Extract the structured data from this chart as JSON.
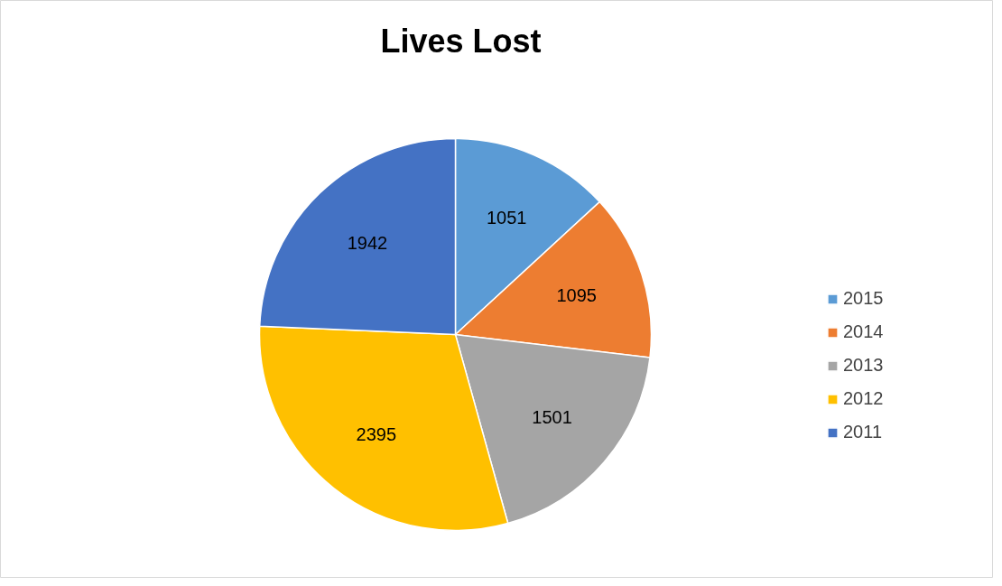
{
  "chart_data": {
    "type": "pie",
    "title": "Lives Lost",
    "categories": [
      "2015",
      "2014",
      "2013",
      "2012",
      "2011"
    ],
    "values": [
      1051,
      1095,
      1501,
      2395,
      1942
    ],
    "colors": [
      "#5b9bd5",
      "#ed7d31",
      "#a5a5a5",
      "#ffc000",
      "#4472c4"
    ],
    "data_labels": true,
    "legend": "right"
  }
}
